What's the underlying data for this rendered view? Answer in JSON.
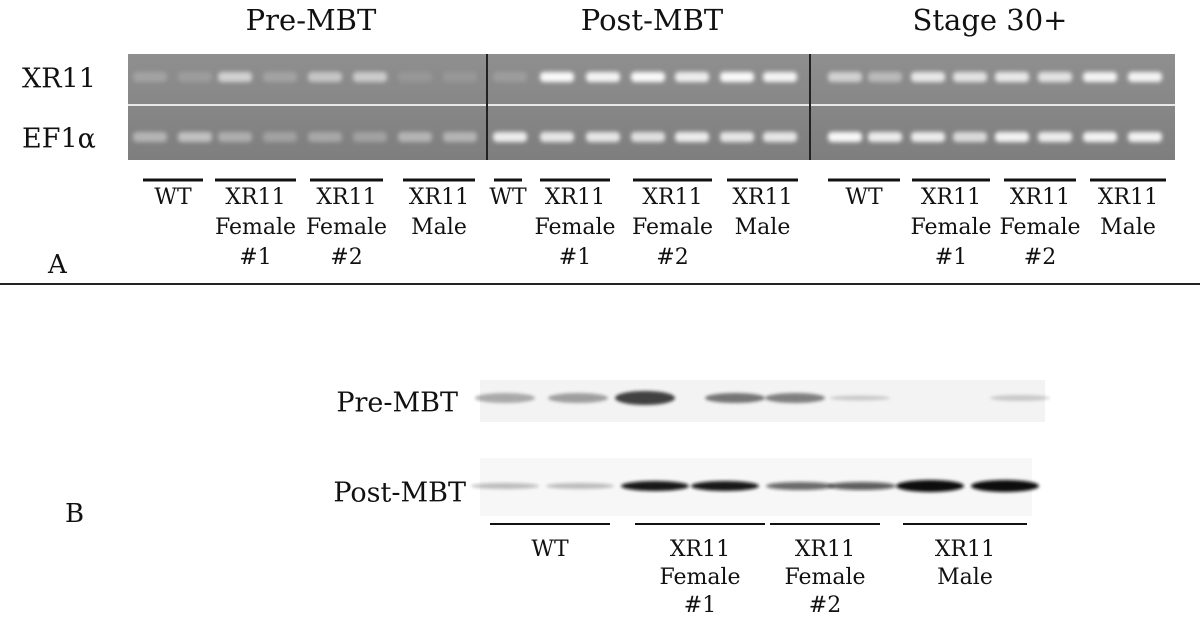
{
  "panel_a": {
    "label": "A",
    "rows": [
      "XR11",
      "EF1α"
    ],
    "stages": [
      {
        "title": "Pre-MBT",
        "groups": [
          [
            "WT"
          ],
          [
            "XR11",
            "Female",
            "#1"
          ],
          [
            "XR11",
            "Female",
            "#2"
          ],
          [
            "XR11",
            "Male"
          ]
        ]
      },
      {
        "title": "Post-MBT",
        "groups": [
          [
            "WT"
          ],
          [
            "XR11",
            "Female",
            "#1"
          ],
          [
            "XR11",
            "Female",
            "#2"
          ],
          [
            "XR11",
            "Male"
          ]
        ]
      },
      {
        "title": "Stage 30+",
        "groups": [
          [
            "WT"
          ],
          [
            "XR11",
            "Female",
            "#1"
          ],
          [
            "XR11",
            "Female",
            "#2"
          ],
          [
            "XR11",
            "Male"
          ]
        ]
      }
    ]
  },
  "panel_b": {
    "label": "B",
    "rows": [
      "Pre-MBT",
      "Post-MBT"
    ],
    "groups": [
      [
        "WT"
      ],
      [
        "XR11",
        "Female",
        "#1"
      ],
      [
        "XR11",
        "Female",
        "#2"
      ],
      [
        "XR11",
        "Male"
      ]
    ]
  }
}
